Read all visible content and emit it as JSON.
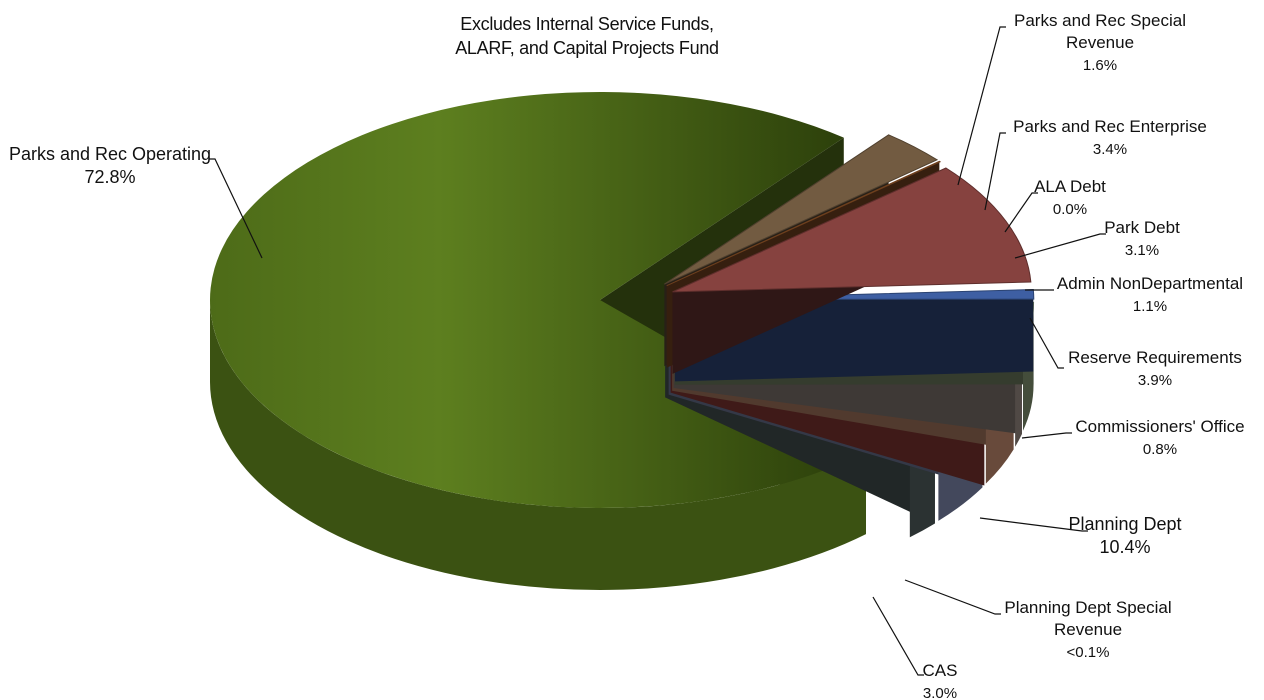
{
  "chart_data": {
    "type": "pie",
    "style": "3d-exploded",
    "note": [
      "Excludes Internal Service Funds,",
      "ALARF, and Capital Projects Fund"
    ],
    "slices": [
      {
        "label": "Parks and Rec Special Revenue",
        "display_lines": [
          "Parks and Rec Special",
          "Revenue"
        ],
        "pct_text": "1.6%",
        "value": 1.6,
        "color": "#5f6e70"
      },
      {
        "label": "Parks and Rec Enterprise",
        "display_lines": [
          "Parks and Rec Enterprise"
        ],
        "pct_text": "3.4%",
        "value": 3.4,
        "color": "#94a1cc"
      },
      {
        "label": "ALA Debt",
        "display_lines": [
          "ALA Debt"
        ],
        "pct_text": "0.0%",
        "value": 0.0,
        "color": "#b34a45"
      },
      {
        "label": "Park Debt",
        "display_lines": [
          "Park Debt"
        ],
        "pct_text": "3.1%",
        "value": 3.1,
        "color": "#e8a582"
      },
      {
        "label": "Admin NonDepartmental",
        "display_lines": [
          "Admin NonDepartmental"
        ],
        "pct_text": "1.1%",
        "value": 1.1,
        "color": "#b2a399"
      },
      {
        "label": "Reserve Requirements",
        "display_lines": [
          "Reserve Requirements"
        ],
        "pct_text": "3.9%",
        "value": 3.9,
        "color": "#98ab83"
      },
      {
        "label": "Commissioners' Office",
        "display_lines": [
          "Commissioners' Office"
        ],
        "pct_text": "0.8%",
        "value": 0.8,
        "color": "#3e5fa3"
      },
      {
        "label": "Planning Dept",
        "display_lines": [
          "Planning Dept"
        ],
        "pct_text": "10.4%",
        "value": 10.4,
        "color": "#86423f"
      },
      {
        "label": "Planning Dept Special Revenue",
        "display_lines": [
          "Planning Dept Special",
          "Revenue"
        ],
        "pct_text": "<0.1%",
        "value": 0.05,
        "color": "#9b5a2a"
      },
      {
        "label": "CAS",
        "display_lines": [
          "CAS"
        ],
        "pct_text": "3.0%",
        "value": 3.0,
        "color": "#725b41"
      },
      {
        "label": "Parks and Rec Operating",
        "display_lines": [
          "Parks and Rec Operating"
        ],
        "pct_text": "72.8%",
        "value": 72.8,
        "color": "#5a7a1d"
      }
    ]
  }
}
